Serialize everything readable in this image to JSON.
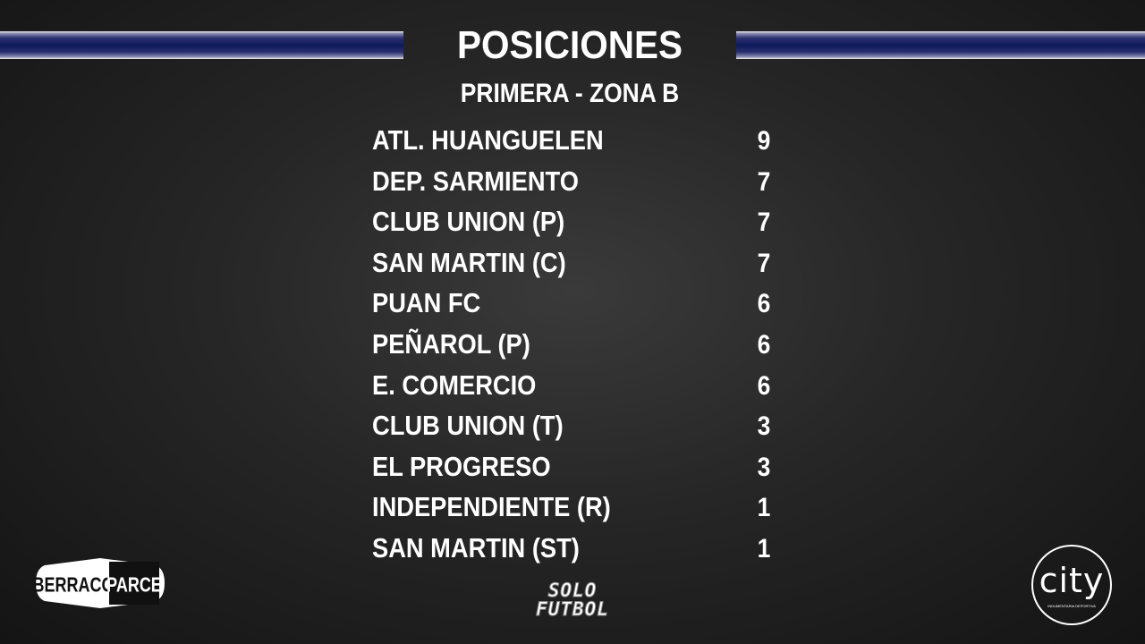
{
  "header": {
    "title": "POSICIONES",
    "subtitle": "PRIMERA - ZONA B",
    "bar_color": "#0e1a5a"
  },
  "standings": [
    {
      "team": "ATL. HUANGUELEN",
      "points": "9"
    },
    {
      "team": "DEP. SARMIENTO",
      "points": "7"
    },
    {
      "team": "CLUB UNION (P)",
      "points": "7"
    },
    {
      "team": "SAN MARTIN (C)",
      "points": "7"
    },
    {
      "team": "PUAN FC",
      "points": "6"
    },
    {
      "team": "PEÑAROL (P)",
      "points": "6"
    },
    {
      "team": "E. COMERCIO",
      "points": "6"
    },
    {
      "team": "CLUB UNION (T)",
      "points": "3"
    },
    {
      "team": "EL PROGRESO",
      "points": "3"
    },
    {
      "team": "INDEPENDIENTE (R)",
      "points": "1"
    },
    {
      "team": "SAN MARTIN (ST)",
      "points": "1"
    }
  ],
  "sponsors": {
    "berraco": {
      "left": "BERRACO",
      "right": "PARCE"
    },
    "solo_futbol": {
      "line1": "SOLO",
      "line2": "FUTBOL"
    },
    "city": {
      "name": "city",
      "tagline": "INDUMENTARIA DEPORTIVA"
    }
  }
}
